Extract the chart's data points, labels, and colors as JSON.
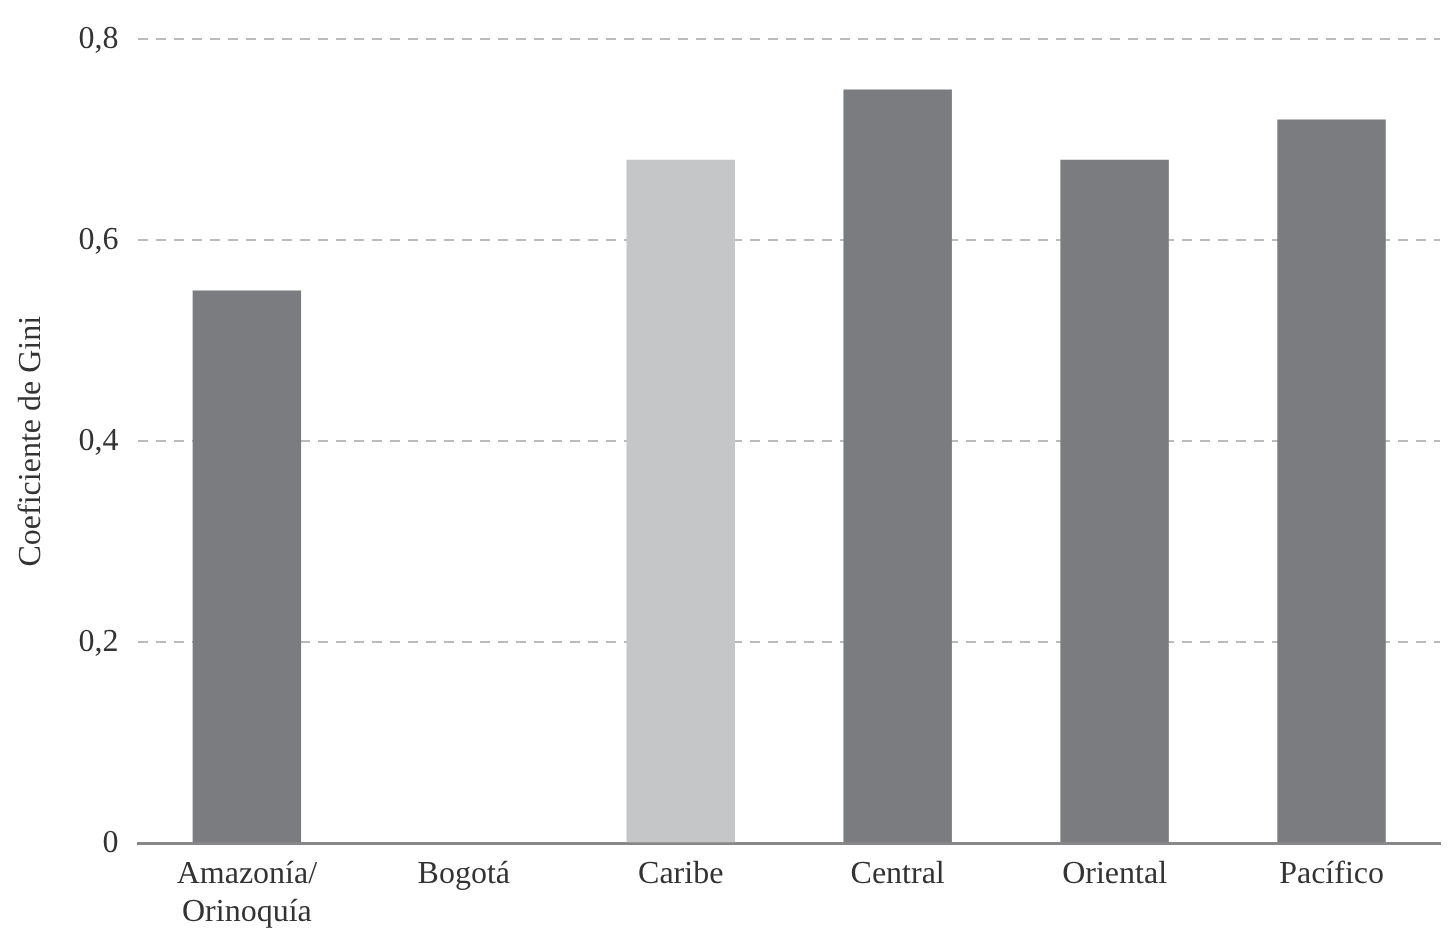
{
  "chart_data": {
    "type": "bar",
    "ylabel": "Coeficiente de Gini",
    "categories": [
      "Amazonía/\nOrinoquía",
      "Bogotá",
      "Caribe",
      "Central",
      "Oriental",
      "Pacífico"
    ],
    "values": [
      0.55,
      null,
      0.68,
      0.75,
      0.68,
      0.72
    ],
    "colors": [
      "#7b7c80",
      "#7b7c80",
      "#c5c6c8",
      "#7b7c80",
      "#7b7c80",
      "#7b7c80"
    ],
    "ylim": [
      0,
      0.8
    ],
    "yticks": [
      {
        "value": 0,
        "label": "0"
      },
      {
        "value": 0.2,
        "label": "0,2"
      },
      {
        "value": 0.4,
        "label": "0,4"
      },
      {
        "value": 0.6,
        "label": "0,6"
      },
      {
        "value": 0.8,
        "label": "0,8"
      }
    ],
    "grid": "y"
  }
}
